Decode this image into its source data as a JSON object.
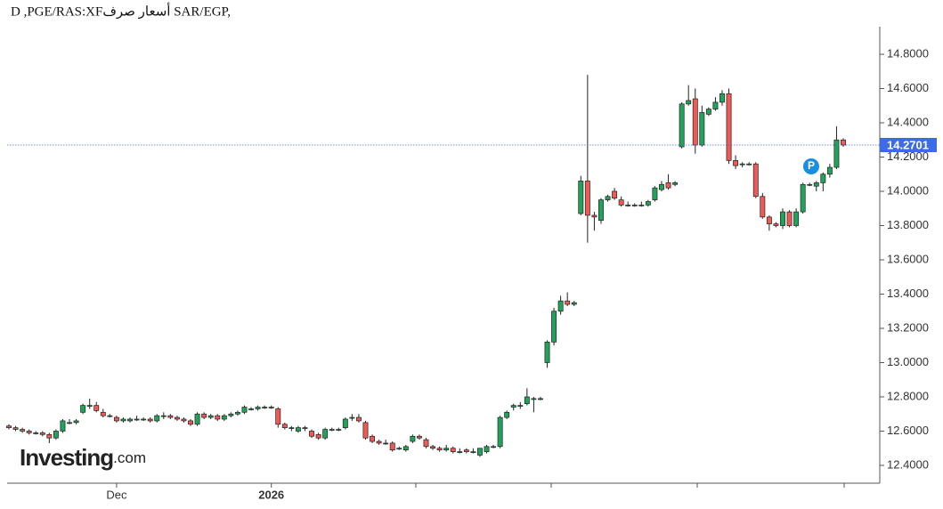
{
  "chart_data": {
    "type": "candlestick",
    "title": "D ,PGE/RAS:XFأسعار صرف SAR/EGP,",
    "brand": "Investing",
    "brand_suffix": ".com",
    "up_color": "#22a35a",
    "down_color": "#ef5a55",
    "last_price": 14.2701,
    "last_price_label": "14.2701",
    "last_price_color": "#3d6be6",
    "ylim": [
      12.296,
      14.961
    ],
    "yticks": [
      {
        "value": 12.4,
        "label": "12.4000"
      },
      {
        "value": 12.6,
        "label": "12.6000"
      },
      {
        "value": 12.8,
        "label": "12.8000"
      },
      {
        "value": 13.0,
        "label": "13.0000"
      },
      {
        "value": 13.2,
        "label": "13.2000"
      },
      {
        "value": 13.4,
        "label": "13.4000"
      },
      {
        "value": 13.6,
        "label": "13.6000"
      },
      {
        "value": 13.8,
        "label": "13.8000"
      },
      {
        "value": 14.0,
        "label": "14.0000"
      },
      {
        "value": 14.2,
        "label": "14.2000"
      },
      {
        "value": 14.4,
        "label": "14.4000"
      },
      {
        "value": 14.6,
        "label": "14.6000"
      },
      {
        "value": 14.8,
        "label": "14.8000"
      }
    ],
    "categories": [
      null,
      null,
      null,
      null,
      null,
      null,
      null,
      null,
      null,
      null,
      null,
      null,
      null,
      null,
      null,
      null,
      "Dec",
      null,
      null,
      null,
      null,
      null,
      null,
      null,
      null,
      null,
      null,
      null,
      null,
      null,
      null,
      null,
      null,
      null,
      null,
      null,
      null,
      null,
      null,
      "2026",
      null,
      null,
      null,
      null,
      null,
      null,
      null,
      null,
      null,
      null,
      null,
      null,
      null,
      null,
      null,
      null,
      null,
      null,
      null,
      null,
      null,
      null,
      null,
      null,
      null,
      null,
      null,
      null,
      null,
      null,
      null,
      null,
      null,
      null,
      null,
      null,
      null,
      null,
      null,
      null,
      null,
      null,
      null,
      null,
      null,
      null,
      null,
      null,
      null,
      null,
      null,
      null,
      null,
      null,
      null,
      null,
      null,
      null,
      null,
      null,
      null,
      null,
      null,
      null,
      null,
      null,
      null,
      null,
      null,
      null,
      null,
      null,
      null,
      null,
      null,
      null,
      null,
      null,
      null,
      null,
      null,
      null,
      null,
      null,
      null
    ],
    "open": [
      12.63,
      12.62,
      12.61,
      12.6,
      12.59,
      12.59,
      12.58,
      12.56,
      12.6,
      12.65,
      12.65,
      12.71,
      12.75,
      12.75,
      12.71,
      12.69,
      12.68,
      12.66,
      12.66,
      12.67,
      12.67,
      12.67,
      12.66,
      12.69,
      12.69,
      12.68,
      12.67,
      12.66,
      12.64,
      12.7,
      12.68,
      12.69,
      12.67,
      12.69,
      12.7,
      12.71,
      12.73,
      12.73,
      12.74,
      12.74,
      12.73,
      12.64,
      12.62,
      12.6,
      12.62,
      12.6,
      12.58,
      12.56,
      12.61,
      12.61,
      12.62,
      12.68,
      12.68,
      12.65,
      12.57,
      12.54,
      12.53,
      12.53,
      12.5,
      12.49,
      12.54,
      12.57,
      12.55,
      12.51,
      12.5,
      12.49,
      12.5,
      12.48,
      12.49,
      12.48,
      12.46,
      12.48,
      12.51,
      12.51,
      12.68,
      12.74,
      12.75,
      12.76,
      12.79,
      12.79,
      13.0,
      13.12,
      13.3,
      13.36,
      13.34,
      13.87,
      14.06,
      13.86,
      13.83,
      13.95,
      14.0,
      13.95,
      13.92,
      13.92,
      13.92,
      13.92,
      13.95,
      14.01,
      14.05,
      14.04,
      14.26,
      14.51,
      14.54,
      14.27,
      14.45,
      14.48,
      14.52,
      14.57,
      14.18,
      14.16,
      14.16,
      14.16,
      13.97,
      13.85,
      13.81,
      13.8,
      13.88,
      13.8,
      13.88,
      14.04,
      14.03,
      14.05,
      14.1,
      14.14,
      14.3
    ],
    "high": [
      12.64,
      12.63,
      12.62,
      12.61,
      12.6,
      12.6,
      12.59,
      12.61,
      12.67,
      12.67,
      12.67,
      12.76,
      12.79,
      12.77,
      12.73,
      12.7,
      12.69,
      12.68,
      12.68,
      12.69,
      12.68,
      12.68,
      12.7,
      12.71,
      12.7,
      12.69,
      12.68,
      12.67,
      12.71,
      12.71,
      12.7,
      12.7,
      12.7,
      12.71,
      12.72,
      12.75,
      12.74,
      12.75,
      12.75,
      12.75,
      12.74,
      12.65,
      12.63,
      12.63,
      12.63,
      12.61,
      12.59,
      12.62,
      12.62,
      12.62,
      12.68,
      12.7,
      12.7,
      12.66,
      12.58,
      12.55,
      12.55,
      12.54,
      12.51,
      12.52,
      12.58,
      12.58,
      12.56,
      12.52,
      12.51,
      12.52,
      12.51,
      12.5,
      12.5,
      12.5,
      12.5,
      12.52,
      12.52,
      12.69,
      12.72,
      12.76,
      12.77,
      12.85,
      12.8,
      12.8,
      13.13,
      13.32,
      13.39,
      13.41,
      13.36,
      14.09,
      14.68,
      13.88,
      13.96,
      13.98,
      14.02,
      13.97,
      13.94,
      13.93,
      13.94,
      13.95,
      14.03,
      14.06,
      14.1,
      14.06,
      14.52,
      14.62,
      14.6,
      14.5,
      14.49,
      14.55,
      14.59,
      14.6,
      14.21,
      14.17,
      14.17,
      14.17,
      13.99,
      13.86,
      13.82,
      13.9,
      13.89,
      13.9,
      14.05,
      14.05,
      14.06,
      14.11,
      14.16,
      14.38,
      14.31
    ],
    "low": [
      12.61,
      12.6,
      12.59,
      12.58,
      12.58,
      12.57,
      12.53,
      12.55,
      12.59,
      12.64,
      12.64,
      12.7,
      12.73,
      12.71,
      12.68,
      12.68,
      12.65,
      12.65,
      12.65,
      12.66,
      12.66,
      12.65,
      12.65,
      12.67,
      12.67,
      12.66,
      12.65,
      12.63,
      12.63,
      12.67,
      12.67,
      12.66,
      12.66,
      12.68,
      12.69,
      12.7,
      12.72,
      12.72,
      12.73,
      12.73,
      12.62,
      12.61,
      12.6,
      12.59,
      12.6,
      12.56,
      12.55,
      12.55,
      12.6,
      12.6,
      12.61,
      12.66,
      12.65,
      12.55,
      12.53,
      12.52,
      12.52,
      12.48,
      12.49,
      12.48,
      12.53,
      12.55,
      12.5,
      12.49,
      12.48,
      12.48,
      12.47,
      12.47,
      12.47,
      12.47,
      12.45,
      12.47,
      12.5,
      12.5,
      12.67,
      12.72,
      12.73,
      12.75,
      12.71,
      12.78,
      12.97,
      13.1,
      13.28,
      13.33,
      13.33,
      13.86,
      13.7,
      13.77,
      13.81,
      13.94,
      13.95,
      13.91,
      13.91,
      13.91,
      13.91,
      13.91,
      13.94,
      14.0,
      14.01,
      14.03,
      14.25,
      14.5,
      14.22,
      14.26,
      14.44,
      14.47,
      14.5,
      14.16,
      14.13,
      14.14,
      14.15,
      13.96,
      13.84,
      13.77,
      13.79,
      13.78,
      13.79,
      13.79,
      13.87,
      14.03,
      14.0,
      14.0,
      14.08,
      14.13,
      14.26
    ],
    "close": [
      12.62,
      12.61,
      12.6,
      12.59,
      12.59,
      12.58,
      12.56,
      12.6,
      12.66,
      12.65,
      12.66,
      12.75,
      12.75,
      12.72,
      12.69,
      12.69,
      12.66,
      12.67,
      12.67,
      12.67,
      12.67,
      12.66,
      12.69,
      12.69,
      12.68,
      12.67,
      12.66,
      12.64,
      12.7,
      12.68,
      12.69,
      12.67,
      12.69,
      12.7,
      12.71,
      12.74,
      12.73,
      12.74,
      12.74,
      12.74,
      12.64,
      12.62,
      12.62,
      12.62,
      12.62,
      12.57,
      12.56,
      12.61,
      12.61,
      12.61,
      12.67,
      12.68,
      12.66,
      12.56,
      12.54,
      12.53,
      12.53,
      12.49,
      12.5,
      12.51,
      12.57,
      12.56,
      12.51,
      12.5,
      12.49,
      12.5,
      12.48,
      12.48,
      12.48,
      12.48,
      12.5,
      12.51,
      12.51,
      12.68,
      12.71,
      12.75,
      12.75,
      12.8,
      12.79,
      12.79,
      13.12,
      13.3,
      13.36,
      13.34,
      13.35,
      14.06,
      13.86,
      13.85,
      13.95,
      13.97,
      13.96,
      13.92,
      13.92,
      13.92,
      13.92,
      13.94,
      14.02,
      14.04,
      14.02,
      14.05,
      14.51,
      14.53,
      14.27,
      14.46,
      14.48,
      14.52,
      14.57,
      14.18,
      14.15,
      14.16,
      14.16,
      13.97,
      13.85,
      13.81,
      13.8,
      13.88,
      13.8,
      13.88,
      14.04,
      14.04,
      14.05,
      14.1,
      14.14,
      14.3,
      14.27
    ]
  }
}
